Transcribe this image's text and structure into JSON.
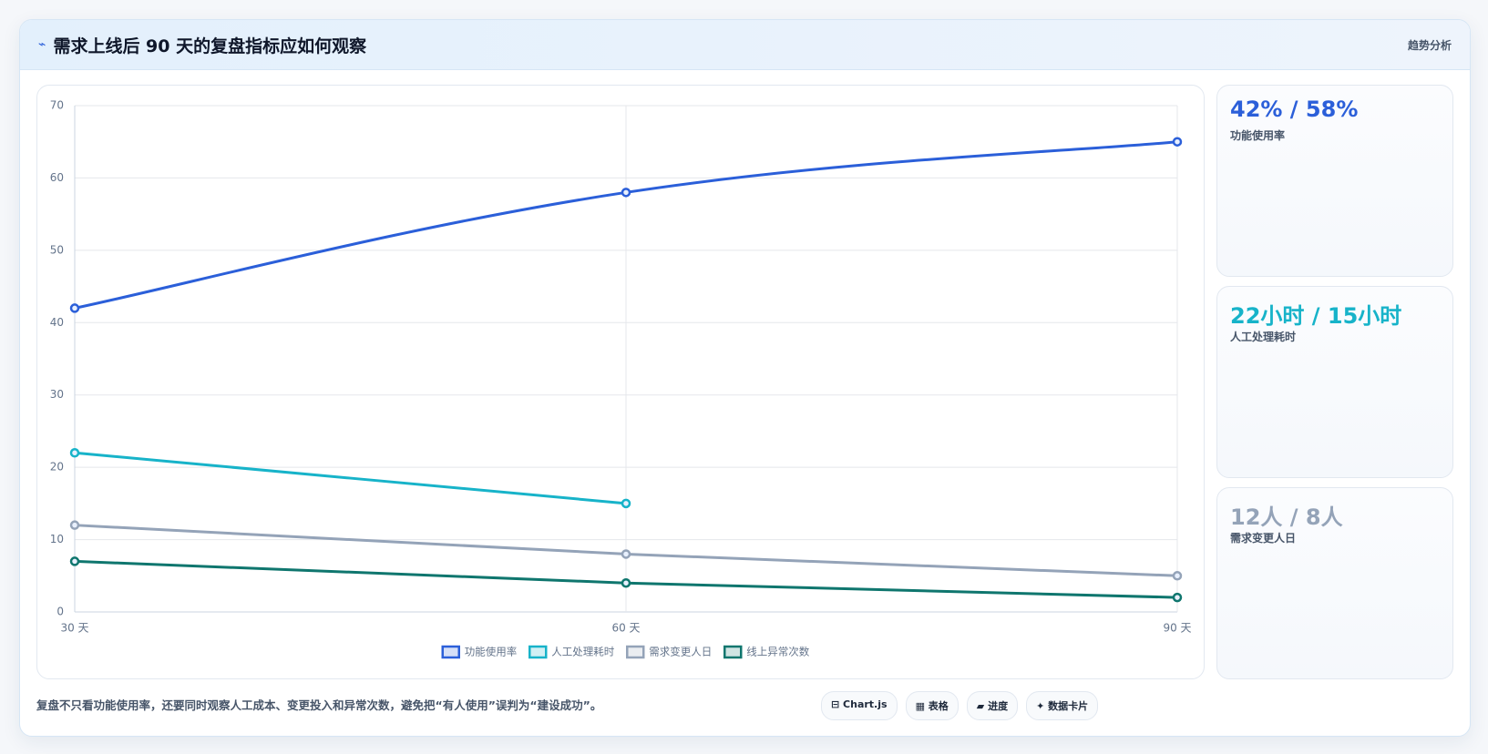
{
  "header": {
    "icon": "⌁",
    "title": "需求上线后 90 天的复盘指标应如何观察",
    "tag": "趋势分析"
  },
  "chart_data": {
    "type": "line",
    "categories": [
      "30 天",
      "60 天",
      "90 天"
    ],
    "series": [
      {
        "name": "功能使用率",
        "color": "#2b5fd9",
        "values": [
          42,
          58,
          65
        ]
      },
      {
        "name": "人工处理耗时",
        "color": "#17b3c9",
        "values": [
          22,
          15,
          null
        ]
      },
      {
        "name": "需求变更人日",
        "color": "#94a3b8",
        "values": [
          12,
          8,
          5
        ]
      },
      {
        "name": "线上异常次数",
        "color": "#0f766e",
        "values": [
          7,
          4,
          2
        ]
      }
    ],
    "ylim": [
      0,
      70
    ],
    "yticks": [
      0,
      10,
      20,
      30,
      40,
      50,
      60,
      70
    ],
    "grid": true
  },
  "cards": [
    {
      "value": "42% / 58%",
      "label": "功能使用率",
      "color": "#2b5fd9"
    },
    {
      "value": "22小时 / 15小时",
      "label": "人工处理耗时",
      "color": "#17b3c9"
    },
    {
      "value": "12人 / 8人",
      "label": "需求变更人日",
      "color": "#94a3b8"
    }
  ],
  "footer": {
    "note": "复盘不只看功能使用率，还要同时观察人工成本、变更投入和异常次数，避免把“有人使用”误判为“建设成功”。",
    "buttons": [
      "⊟ Chart.js",
      "▦ 表格",
      "▰ 进度",
      "✦ 数据卡片"
    ]
  }
}
